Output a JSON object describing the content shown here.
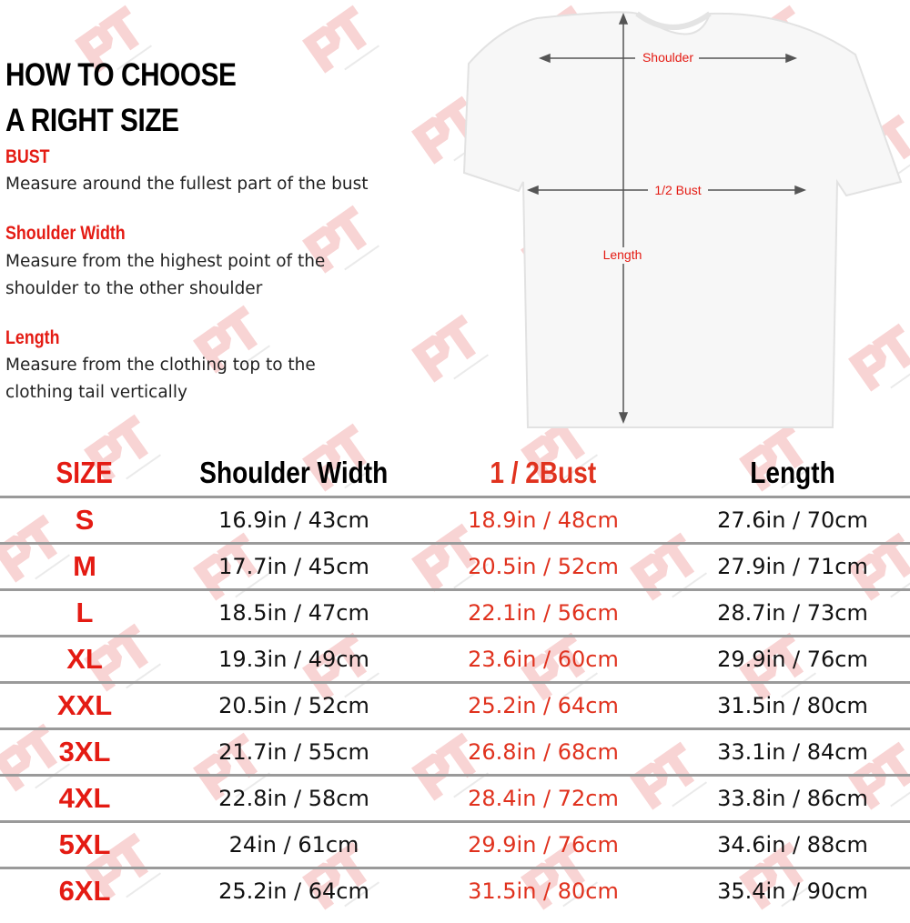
{
  "guide": {
    "title_line1": "HOW TO CHOOSE",
    "title_line2": "A RIGHT SIZE",
    "sections": [
      {
        "heading": "BUST",
        "lines": [
          "Measure around the fullest part of the bust"
        ]
      },
      {
        "heading": "Shoulder Width",
        "lines": [
          "Measure from the highest point of the",
          "shoulder to the other shoulder"
        ]
      },
      {
        "heading": "Length",
        "lines": [
          "Measure from the clothing top to the",
          "clothing tail vertically"
        ]
      }
    ]
  },
  "diagram": {
    "shoulder_label": "Shoulder",
    "bust_label": "1/2 Bust",
    "length_label": "Length"
  },
  "watermark": {
    "logo": "PT",
    "text": "P-Tee Studio"
  },
  "colors": {
    "accent": "#e41b13",
    "bust_value": "#e0321e",
    "row_divider": "#9a9a9a",
    "watermark": "#f4b8b8"
  },
  "table": {
    "headers": [
      "SIZE",
      "Shoulder Width",
      "1 / 2Bust",
      "Length"
    ],
    "rows": [
      [
        "S",
        "16.9in / 43cm",
        "18.9in / 48cm",
        "27.6in / 70cm"
      ],
      [
        "M",
        "17.7in / 45cm",
        "20.5in / 52cm",
        "27.9in / 71cm"
      ],
      [
        "L",
        "18.5in / 47cm",
        "22.1in / 56cm",
        "28.7in / 73cm"
      ],
      [
        "XL",
        "19.3in / 49cm",
        "23.6in / 60cm",
        "29.9in / 76cm"
      ],
      [
        "XXL",
        "20.5in / 52cm",
        "25.2in / 64cm",
        "31.5in / 80cm"
      ],
      [
        "3XL",
        "21.7in / 55cm",
        "26.8in / 68cm",
        "33.1in / 84cm"
      ],
      [
        "4XL",
        "22.8in / 58cm",
        "28.4in / 72cm",
        "33.8in / 86cm"
      ],
      [
        "5XL",
        "24in / 61cm",
        "29.9in / 76cm",
        "34.6in / 88cm"
      ],
      [
        "6XL",
        "25.2in / 64cm",
        "31.5in / 80cm",
        "35.4in / 90cm"
      ]
    ]
  }
}
